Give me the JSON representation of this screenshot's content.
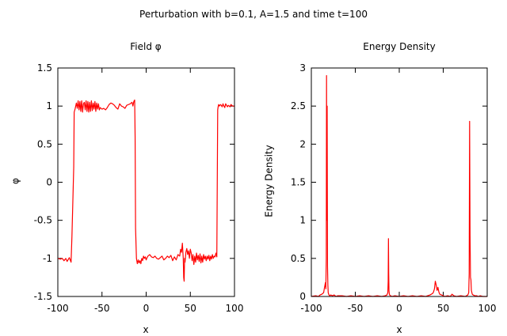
{
  "figure_title": "Perturbation with b=0.1, A=1.5 and time t=100",
  "colors": {
    "series": "#ff0000",
    "axes": "#000000",
    "background": "#ffffff"
  },
  "chart_data": [
    {
      "type": "line",
      "title": "Field φ",
      "xlabel": "x",
      "ylabel": "φ",
      "xlim": [
        -100,
        100
      ],
      "ylim": [
        -1.5,
        1.5
      ],
      "xticks": [
        -100,
        -50,
        0,
        50,
        100
      ],
      "xtick_labels": [
        "-100",
        "-50",
        "0",
        "50",
        "100"
      ],
      "yticks": [
        -1.5,
        -1,
        -0.5,
        0,
        0.5,
        1,
        1.5
      ],
      "ytick_labels": [
        "-1.5",
        "-1",
        "-0.5",
        "0",
        "0.5",
        "1",
        "1.5"
      ],
      "grid": false,
      "series": [
        {
          "name": "phi",
          "x": [
            -100,
            -97,
            -95,
            -93,
            -91,
            -89.5,
            -88,
            -87,
            -85,
            -84,
            -82,
            -81.5,
            -80.5,
            -79,
            -78,
            -77,
            -76,
            -75,
            -74,
            -73,
            -72,
            -71,
            -70,
            -69,
            -68,
            -67,
            -66,
            -65,
            -64,
            -63,
            -62,
            -61,
            -60,
            -59,
            -58,
            -57,
            -56,
            -55,
            -54,
            -53,
            -52,
            -50,
            -48,
            -46,
            -44,
            -42,
            -40,
            -38,
            -36,
            -34,
            -32,
            -30,
            -28,
            -26,
            -24,
            -22,
            -20,
            -18,
            -16,
            -15,
            -14,
            -13,
            -12.5,
            -12,
            -11,
            -10,
            -9,
            -8,
            -7,
            -6,
            -5,
            -4,
            -3,
            -2,
            -1,
            0,
            1,
            2,
            4,
            6,
            8,
            10,
            12,
            14,
            16,
            18,
            20,
            22,
            24,
            26,
            28,
            30,
            32,
            34,
            36,
            38,
            39,
            40,
            41,
            42,
            42.5,
            43,
            43.5,
            44,
            45,
            46,
            47,
            48,
            49,
            50,
            51,
            52,
            53,
            54,
            55,
            56,
            57,
            58,
            59,
            60,
            61,
            62,
            63,
            64,
            65,
            66,
            67,
            68,
            69,
            70,
            71,
            72,
            73,
            74,
            75,
            76,
            77,
            78,
            79,
            80,
            81,
            81.5,
            82,
            83,
            84,
            85,
            86,
            87,
            88,
            89,
            90,
            91,
            92,
            93,
            94,
            95,
            96,
            97,
            98,
            99,
            100
          ],
          "y": [
            -1.0,
            -1.01,
            -1.0,
            -1.03,
            -1.0,
            -1.04,
            -1.01,
            -0.99,
            -1.05,
            -0.7,
            0.2,
            0.92,
            0.96,
            1.04,
            0.97,
            1.07,
            0.95,
            1.06,
            0.93,
            1.07,
            0.92,
            1.03,
            1.05,
            0.95,
            1.07,
            0.93,
            1.06,
            0.92,
            1.05,
            0.93,
            1.07,
            0.94,
            1.04,
            0.96,
            1.06,
            0.93,
            1.04,
            0.96,
            1.03,
            0.95,
            0.98,
            0.96,
            0.97,
            0.95,
            0.98,
            1.02,
            1.04,
            1.03,
            1.01,
            0.98,
            0.96,
            1.03,
            1.0,
            0.99,
            0.97,
            1.01,
            1.02,
            1.03,
            1.05,
            1.0,
            1.06,
            1.08,
            0.6,
            -0.6,
            -1.0,
            -1.07,
            -1.02,
            -1.06,
            -1.03,
            -1.07,
            -1.0,
            -1.03,
            -0.97,
            -1.0,
            -0.98,
            -1.02,
            -0.99,
            -0.97,
            -0.95,
            -0.98,
            -0.99,
            -0.97,
            -1.0,
            -1.01,
            -0.99,
            -0.97,
            -1.02,
            -1.0,
            -0.97,
            -0.99,
            -0.96,
            -1.03,
            -0.98,
            -1.02,
            -0.95,
            -0.97,
            -0.88,
            -0.92,
            -0.8,
            -1.0,
            -1.25,
            -1.3,
            -1.0,
            -1.05,
            -0.92,
            -0.87,
            -0.95,
            -0.9,
            -1.0,
            -0.88,
            -0.93,
            -1.03,
            -0.95,
            -1.08,
            -0.97,
            -1.05,
            -0.93,
            -1.02,
            -0.96,
            -1.04,
            -0.94,
            -1.06,
            -0.97,
            -1.05,
            -0.95,
            -1.01,
            -0.97,
            -1.03,
            -0.97,
            -1.01,
            -0.96,
            -1.03,
            -0.97,
            -1.01,
            -0.95,
            -1.0,
            -0.97,
            -0.98,
            -0.93,
            -0.98,
            0.95,
            0.99,
            1.02,
            1.0,
            1.02,
            1.01,
            0.99,
            1.03,
            1.0,
            0.98,
            1.03,
            1.01,
            0.99,
            1.01,
            1.0,
            0.99,
            1.02,
            1.01,
            1.0,
            1.0,
            1.0
          ]
        }
      ]
    },
    {
      "type": "line",
      "title": "Energy Density",
      "xlabel": "x",
      "ylabel": "Energy Density",
      "xlim": [
        -100,
        100
      ],
      "ylim": [
        0,
        3
      ],
      "xticks": [
        -100,
        -50,
        0,
        50,
        100
      ],
      "xtick_labels": [
        "-100",
        "-50",
        "0",
        "50",
        "100"
      ],
      "yticks": [
        0,
        0.5,
        1,
        1.5,
        2,
        2.5,
        3
      ],
      "ytick_labels": [
        "0",
        "0.5",
        "1",
        "1.5",
        "2",
        "2.5",
        "3"
      ],
      "grid": false,
      "series": [
        {
          "name": "energy",
          "x": [
            -100,
            -95,
            -92,
            -90,
            -88,
            -86,
            -85,
            -84,
            -83.5,
            -83,
            -82.7,
            -82.4,
            -82,
            -81.6,
            -81.2,
            -80.8,
            -80,
            -79,
            -78,
            -76,
            -74,
            -72,
            -70,
            -65,
            -60,
            -55,
            -50,
            -45,
            -40,
            -35,
            -30,
            -25,
            -20,
            -16,
            -14,
            -13,
            -12.6,
            -12.3,
            -12,
            -11.7,
            -11.3,
            -11,
            -10,
            -8,
            -5,
            0,
            5,
            10,
            15,
            20,
            25,
            30,
            35,
            38,
            39,
            40,
            41,
            42,
            43,
            44,
            45,
            46,
            48,
            50,
            52,
            55,
            58,
            60,
            62,
            65,
            70,
            75,
            78,
            79,
            79.5,
            80,
            80.5,
            81,
            81.5,
            82,
            83,
            84,
            86,
            88,
            90,
            92,
            95,
            100
          ],
          "y": [
            0.0,
            0.01,
            0.0,
            0.02,
            0.03,
            0.05,
            0.12,
            0.18,
            0.1,
            0.5,
            2.9,
            1.0,
            2.5,
            0.4,
            0.15,
            0.05,
            0.02,
            0.01,
            0.02,
            0.01,
            0.02,
            0.0,
            0.01,
            0.01,
            0.0,
            0.01,
            0.0,
            0.01,
            0.0,
            0.01,
            0.0,
            0.01,
            0.0,
            0.01,
            0.02,
            0.05,
            0.2,
            0.76,
            0.3,
            0.08,
            0.03,
            0.02,
            0.01,
            0.0,
            0.01,
            0.0,
            0.01,
            0.0,
            0.01,
            0.0,
            0.01,
            0.0,
            0.02,
            0.04,
            0.06,
            0.1,
            0.2,
            0.15,
            0.08,
            0.12,
            0.06,
            0.03,
            0.02,
            0.01,
            0.0,
            0.01,
            0.0,
            0.03,
            0.01,
            0.0,
            0.01,
            0.0,
            0.02,
            0.05,
            0.3,
            2.3,
            0.8,
            0.25,
            0.22,
            0.08,
            0.03,
            0.02,
            0.01,
            0.01,
            0.0,
            0.01,
            0.0,
            0.0
          ]
        }
      ]
    }
  ]
}
